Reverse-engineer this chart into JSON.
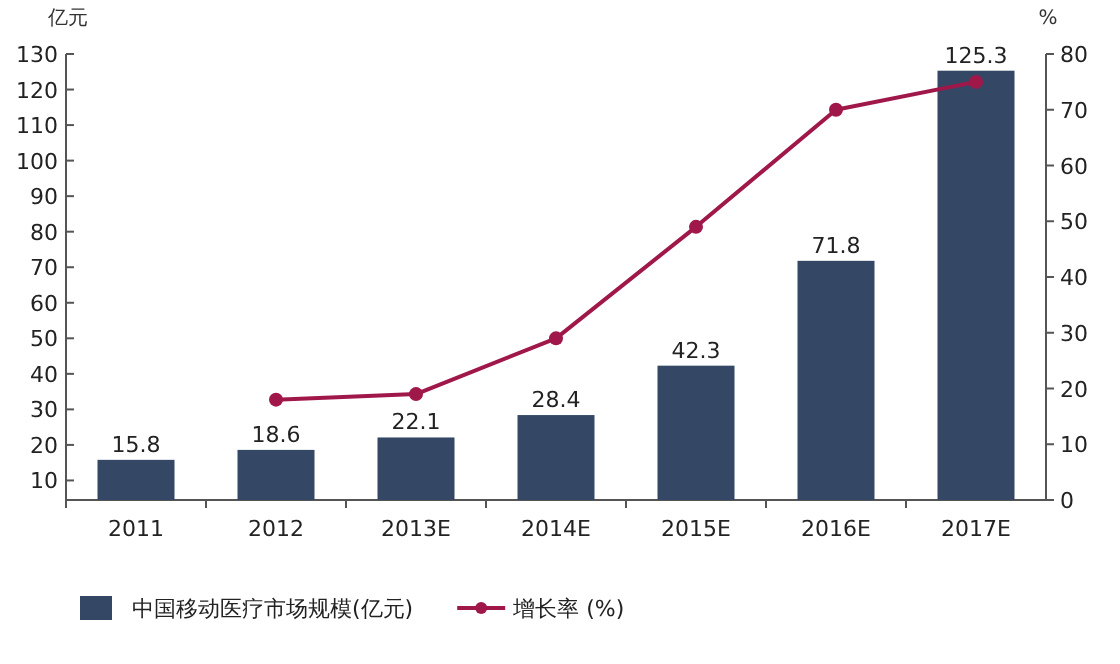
{
  "chart_data": {
    "type": "bar",
    "ylabel": "亿元",
    "y2label": "%",
    "categories": [
      "2011",
      "2012",
      "2013E",
      "2014E",
      "2015E",
      "2016E",
      "2017E"
    ],
    "series": [
      {
        "name": "中国移动医疗市场规模(亿元)",
        "color": "#344865",
        "values": [
          15.8,
          18.6,
          22.1,
          28.4,
          42.3,
          71.8,
          125.3
        ],
        "value_labels": [
          "15.8",
          "18.6",
          "22.1",
          "28.4",
          "42.3",
          "71.8",
          "125.3"
        ]
      },
      {
        "name": "增长率 (%)",
        "type": "line",
        "axis": "y2",
        "color": "#a0174a",
        "marker": "circle",
        "values": [
          null,
          18,
          19,
          29,
          49,
          70,
          75
        ]
      }
    ],
    "ylim": [
      4.5,
      130
    ],
    "yticks": [
      10,
      20,
      30,
      40,
      50,
      60,
      70,
      80,
      90,
      100,
      110,
      120,
      130
    ],
    "y2lim": [
      0,
      80
    ],
    "y2ticks": [
      0,
      10,
      20,
      30,
      40,
      50,
      60,
      70,
      80
    ],
    "legend": "bottom",
    "grid": false
  }
}
